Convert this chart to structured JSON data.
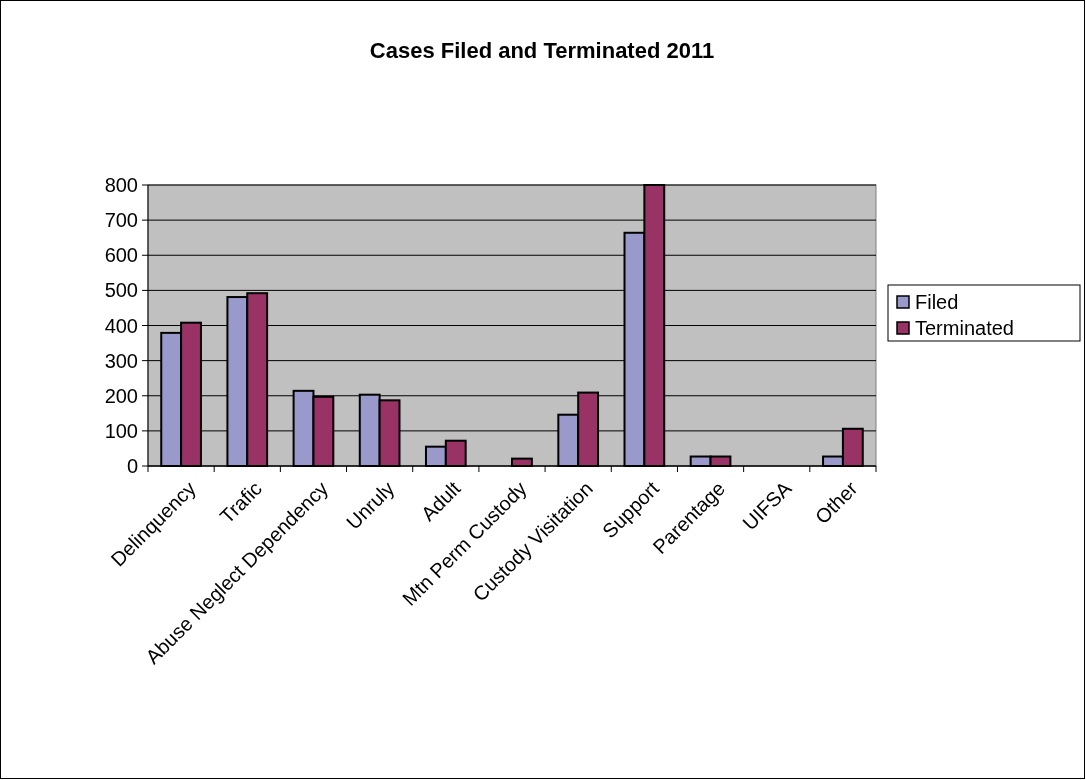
{
  "chart_data": {
    "type": "bar",
    "title": "Cases Filed and Terminated 2011",
    "categories": [
      "Delinquency",
      "Trafic",
      "Abuse Neglect Dependency",
      "Unruly",
      "Adult",
      "Mtn Perm Custody",
      "Custody Visitation",
      "Support",
      "Parentage",
      "UIFSA",
      "Other"
    ],
    "series": [
      {
        "name": "Filed",
        "color": "#9999cc",
        "values": [
          379,
          481,
          214,
          203,
          55,
          0,
          146,
          664,
          27,
          0,
          27
        ]
      },
      {
        "name": "Terminated",
        "color": "#993366",
        "values": [
          408,
          492,
          197,
          187,
          72,
          21,
          209,
          800,
          27,
          0,
          106
        ]
      }
    ],
    "ylim": [
      0,
      800
    ],
    "yticks": [
      0,
      100,
      200,
      300,
      400,
      500,
      600,
      700,
      800
    ],
    "grid": "y",
    "legend": "right"
  }
}
